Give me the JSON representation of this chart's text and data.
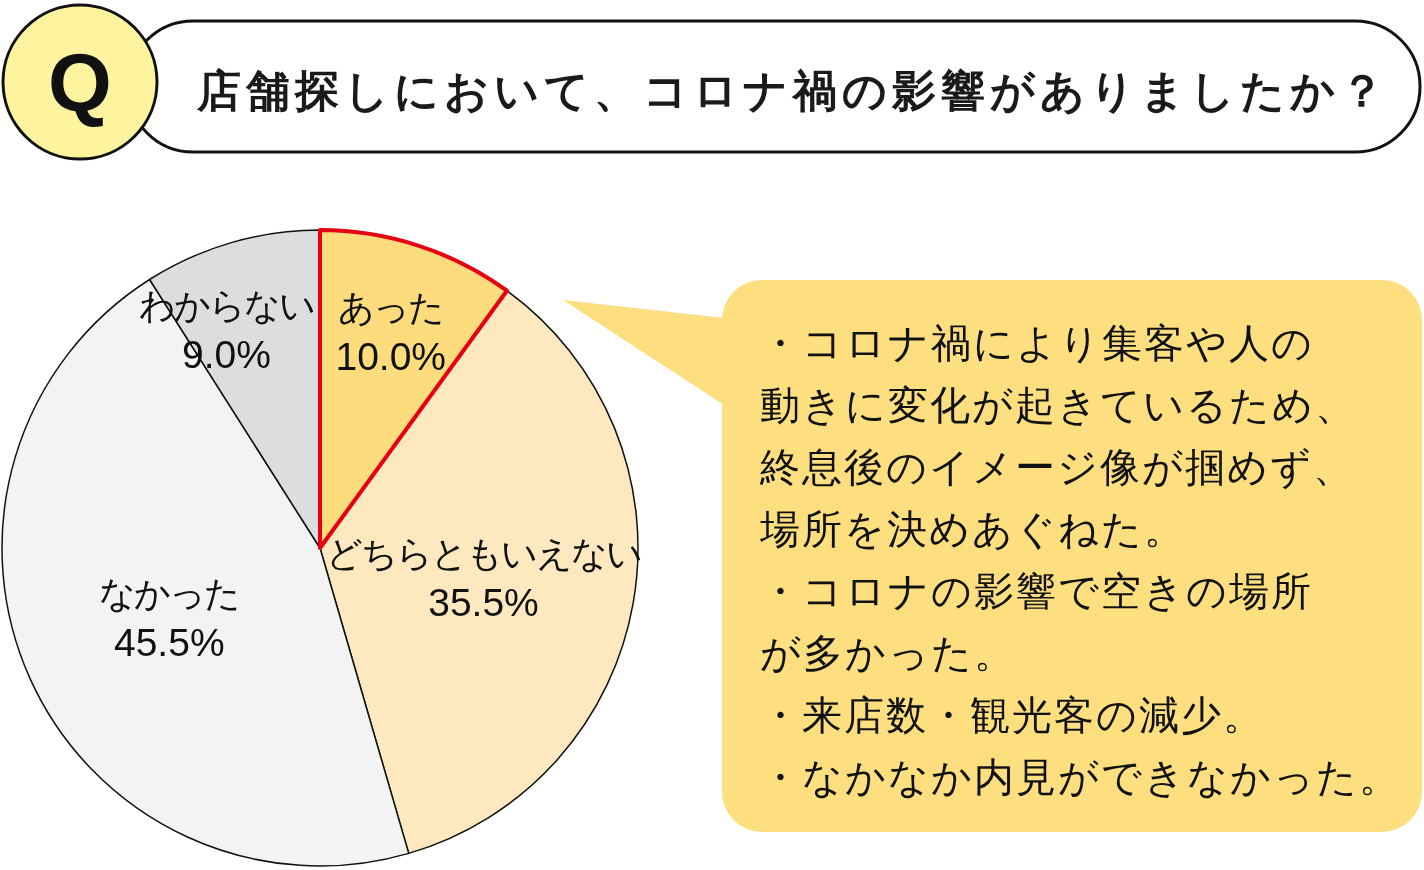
{
  "chart_data": {
    "type": "pie",
    "title": "店舗探しにおいて、コロナ禍の影響がありましたか？",
    "categories": [
      "あった",
      "どちらともいえない",
      "なかった",
      "わからない"
    ],
    "values": [
      10.0,
      35.5,
      45.5,
      9.0
    ],
    "colors": [
      "#fddc7d",
      "#fee8c0",
      "#f2f3f3",
      "#dcdddd"
    ],
    "value_labels": [
      "10.0%",
      "35.5%",
      "45.5%",
      "9.0%"
    ],
    "annotations": [
      "Q",
      {
        "text": "・コロナ禍により集客や人の動きに変化が起きているため、終息後のイメージ像が掴めず、場所を決めあぐねた。",
        "x": "あった"
      },
      {
        "text": "・コロナの影響で空きの場所が多かった。",
        "x": "あった"
      },
      {
        "text": "・来店数・観光客の減少。",
        "x": "あった"
      },
      {
        "text": "・なかなか内見ができなかった。",
        "x": "あった"
      }
    ]
  }
}
